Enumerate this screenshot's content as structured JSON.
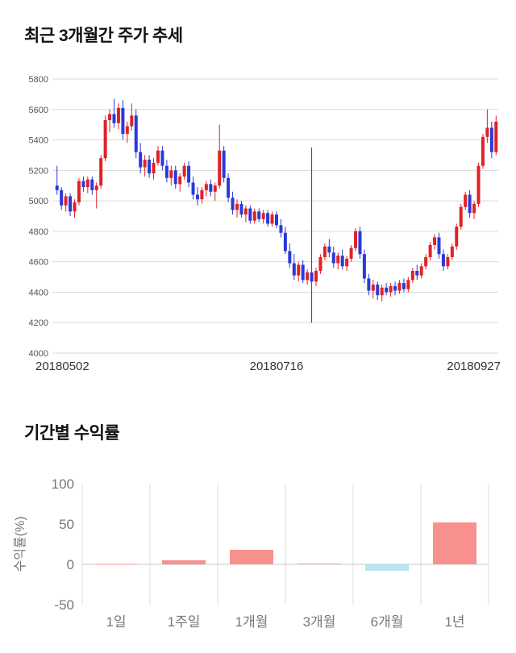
{
  "page": {
    "background": "#ffffff"
  },
  "chart_data": [
    {
      "type": "candlestick",
      "title": "최근 3개월간 주가 추세",
      "x_ticks": [
        "20180502",
        "20180716",
        "20180927"
      ],
      "y_ticks": [
        5800,
        5600,
        5400,
        5200,
        5000,
        4800,
        4600,
        4400,
        4200,
        4000
      ],
      "ylim": [
        4000,
        5800
      ],
      "grid": true,
      "legend": "none",
      "up_color": "#e02226",
      "down_color": "#2b39d8",
      "grid_color": "#d9d9d9",
      "y_tick_color": "#555555",
      "x_tick_color": "#333333",
      "candles_ohlc": [
        [
          5100,
          5230,
          5040,
          5070
        ],
        [
          5070,
          5090,
          4940,
          4970
        ],
        [
          4970,
          5050,
          4930,
          5030
        ],
        [
          5030,
          5050,
          4900,
          4930
        ],
        [
          4930,
          5010,
          4890,
          4990
        ],
        [
          4990,
          5150,
          4970,
          5130
        ],
        [
          5130,
          5160,
          5060,
          5090
        ],
        [
          5090,
          5160,
          5050,
          5140
        ],
        [
          5140,
          5160,
          5040,
          5070
        ],
        [
          5070,
          5120,
          4950,
          5100
        ],
        [
          5100,
          5300,
          5080,
          5280
        ],
        [
          5280,
          5560,
          5260,
          5530
        ],
        [
          5530,
          5600,
          5450,
          5570
        ],
        [
          5570,
          5670,
          5480,
          5510
        ],
        [
          5510,
          5640,
          5470,
          5610
        ],
        [
          5610,
          5660,
          5400,
          5440
        ],
        [
          5440,
          5520,
          5380,
          5490
        ],
        [
          5490,
          5640,
          5460,
          5560
        ],
        [
          5560,
          5600,
          5280,
          5320
        ],
        [
          5320,
          5380,
          5180,
          5220
        ],
        [
          5220,
          5300,
          5160,
          5270
        ],
        [
          5270,
          5300,
          5150,
          5180
        ],
        [
          5180,
          5280,
          5140,
          5250
        ],
        [
          5250,
          5360,
          5230,
          5330
        ],
        [
          5330,
          5360,
          5200,
          5230
        ],
        [
          5230,
          5270,
          5120,
          5150
        ],
        [
          5150,
          5230,
          5100,
          5200
        ],
        [
          5200,
          5230,
          5080,
          5110
        ],
        [
          5110,
          5180,
          5060,
          5160
        ],
        [
          5160,
          5250,
          5140,
          5230
        ],
        [
          5230,
          5260,
          5090,
          5120
        ],
        [
          5120,
          5160,
          5010,
          5040
        ],
        [
          5040,
          5090,
          4970,
          5010
        ],
        [
          5010,
          5090,
          4980,
          5070
        ],
        [
          5070,
          5130,
          5030,
          5110
        ],
        [
          5110,
          5140,
          5030,
          5060
        ],
        [
          5060,
          5120,
          5000,
          5100
        ],
        [
          5100,
          5500,
          5080,
          5330
        ],
        [
          5330,
          5360,
          5120,
          5150
        ],
        [
          5150,
          5180,
          4990,
          5020
        ],
        [
          5020,
          5060,
          4910,
          4940
        ],
        [
          4940,
          5010,
          4890,
          4980
        ],
        [
          4980,
          5000,
          4890,
          4910
        ],
        [
          4910,
          4970,
          4860,
          4950
        ],
        [
          4950,
          4970,
          4850,
          4870
        ],
        [
          4870,
          4950,
          4850,
          4930
        ],
        [
          4930,
          4950,
          4860,
          4880
        ],
        [
          4880,
          4940,
          4850,
          4920
        ],
        [
          4920,
          4940,
          4830,
          4850
        ],
        [
          4850,
          4930,
          4830,
          4910
        ],
        [
          4910,
          4930,
          4820,
          4840
        ],
        [
          4840,
          4880,
          4760,
          4790
        ],
        [
          4790,
          4830,
          4650,
          4670
        ],
        [
          4670,
          4720,
          4560,
          4590
        ],
        [
          4590,
          4650,
          4480,
          4510
        ],
        [
          4510,
          4600,
          4470,
          4580
        ],
        [
          4580,
          4610,
          4460,
          4480
        ],
        [
          4480,
          4550,
          4450,
          4530
        ],
        [
          4530,
          5350,
          4200,
          4470
        ],
        [
          4470,
          4560,
          4440,
          4540
        ],
        [
          4540,
          4650,
          4520,
          4630
        ],
        [
          4630,
          4720,
          4610,
          4700
        ],
        [
          4700,
          4750,
          4630,
          4660
        ],
        [
          4660,
          4700,
          4560,
          4590
        ],
        [
          4590,
          4660,
          4550,
          4640
        ],
        [
          4640,
          4680,
          4550,
          4570
        ],
        [
          4570,
          4640,
          4540,
          4620
        ],
        [
          4620,
          4710,
          4600,
          4690
        ],
        [
          4690,
          4820,
          4670,
          4800
        ],
        [
          4800,
          4830,
          4620,
          4650
        ],
        [
          4650,
          4680,
          4460,
          4490
        ],
        [
          4490,
          4520,
          4380,
          4410
        ],
        [
          4410,
          4480,
          4360,
          4450
        ],
        [
          4450,
          4470,
          4350,
          4380
        ],
        [
          4380,
          4450,
          4340,
          4430
        ],
        [
          4430,
          4460,
          4380,
          4400
        ],
        [
          4400,
          4460,
          4370,
          4440
        ],
        [
          4440,
          4470,
          4380,
          4410
        ],
        [
          4410,
          4480,
          4390,
          4460
        ],
        [
          4460,
          4490,
          4400,
          4420
        ],
        [
          4420,
          4500,
          4400,
          4480
        ],
        [
          4480,
          4560,
          4460,
          4540
        ],
        [
          4540,
          4580,
          4480,
          4510
        ],
        [
          4510,
          4590,
          4490,
          4570
        ],
        [
          4570,
          4650,
          4550,
          4630
        ],
        [
          4630,
          4730,
          4610,
          4710
        ],
        [
          4710,
          4780,
          4680,
          4760
        ],
        [
          4760,
          4790,
          4620,
          4650
        ],
        [
          4650,
          4680,
          4540,
          4570
        ],
        [
          4570,
          4650,
          4550,
          4630
        ],
        [
          4630,
          4720,
          4610,
          4700
        ],
        [
          4700,
          4850,
          4680,
          4830
        ],
        [
          4830,
          4980,
          4810,
          4960
        ],
        [
          4960,
          5060,
          4940,
          5040
        ],
        [
          5040,
          5070,
          4890,
          4920
        ],
        [
          4920,
          5000,
          4880,
          4980
        ],
        [
          4980,
          5250,
          4960,
          5230
        ],
        [
          5230,
          5440,
          5210,
          5420
        ],
        [
          5420,
          5600,
          5380,
          5480
        ],
        [
          5480,
          5520,
          5280,
          5320
        ],
        [
          5320,
          5560,
          5300,
          5520
        ]
      ]
    },
    {
      "type": "bar",
      "title": "기간별 수익률",
      "ylabel": "수익률(%)",
      "categories": [
        "1일",
        "1주일",
        "1개월",
        "3개월",
        "6개월",
        "1년"
      ],
      "values": [
        0.3,
        5,
        18,
        0.8,
        -8,
        52
      ],
      "y_ticks": [
        100,
        50,
        0,
        -50
      ],
      "ylim": [
        -50,
        100
      ],
      "grid": true,
      "legend": "none",
      "pos_color": "#f8918e",
      "neg_color": "#b9e5ee",
      "grid_color": "#dddddd",
      "zero_line_color": "#c8c8c8",
      "tick_color": "#777777"
    }
  ]
}
